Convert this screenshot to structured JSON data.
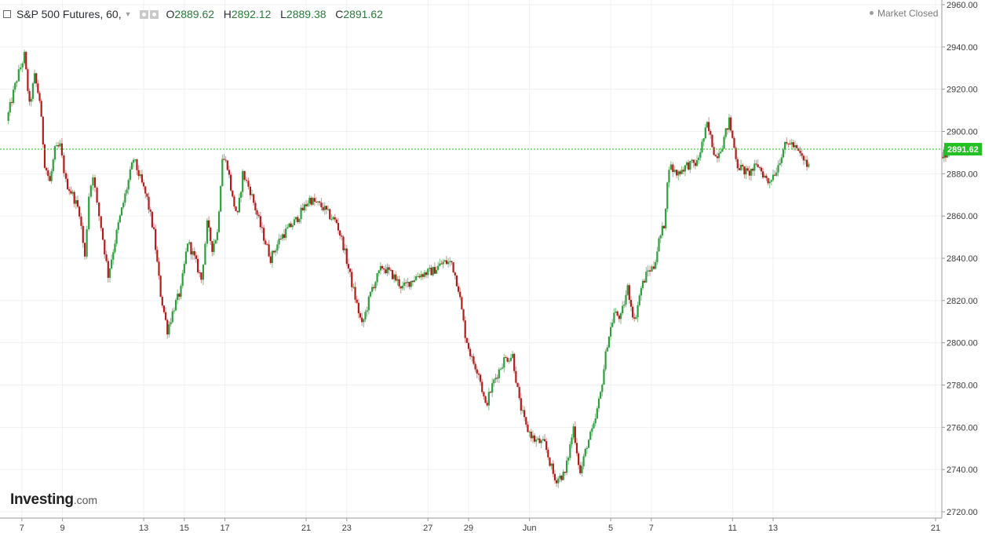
{
  "header": {
    "title": "S&P 500 Futures, 60,",
    "open_label": "O",
    "open": "2889.62",
    "high_label": "H",
    "high": "2892.12",
    "low_label": "L",
    "low": "2889.38",
    "close_label": "C",
    "close": "2891.62"
  },
  "status": {
    "text": "Market Closed"
  },
  "logo": {
    "main": "Investing",
    "suffix": ".com"
  },
  "colors": {
    "up": "#2e9e3e",
    "down": "#b31b1b",
    "last_price": "#22c022",
    "grid": "#eef1f4",
    "axis_text": "#3c3c3c"
  },
  "chart_data": {
    "type": "candlestick",
    "title": "S&P 500 Futures, 60,",
    "y_ticks": [
      2720,
      2740,
      2760,
      2780,
      2800,
      2820,
      2840,
      2860,
      2880,
      2900,
      2920,
      2940,
      2960
    ],
    "y_tick_labels": [
      "2720.00",
      "2740.00",
      "2760.00",
      "2780.00",
      "2800.00",
      "2820.00",
      "2840.00",
      "2860.00",
      "2880.00",
      "2900.00",
      "2920.00",
      "2940.00",
      "2960.00"
    ],
    "ylim": [
      2718,
      2962
    ],
    "x_tick_labels": [
      "7",
      "9",
      "13",
      "15",
      "17",
      "21",
      "23",
      "27",
      "29",
      "Jun",
      "5",
      "7",
      "11",
      "13",
      "21"
    ],
    "x_tick_dates": [
      "2019-05-07",
      "2019-05-09",
      "2019-05-13",
      "2019-05-15",
      "2019-05-17",
      "2019-05-21",
      "2019-05-23",
      "2019-05-27",
      "2019-05-29",
      "2019-06-01",
      "2019-06-05",
      "2019-06-07",
      "2019-06-11",
      "2019-06-13",
      "2019-06-21"
    ],
    "last_price": 2891.62,
    "last_price_label": "2891.62",
    "close_path": [
      {
        "date": "2019-05-06",
        "close": 2905
      },
      {
        "date": "2019-05-06",
        "close": 2925
      },
      {
        "date": "2019-05-07",
        "close": 2936
      },
      {
        "date": "2019-05-07",
        "close": 2912
      },
      {
        "date": "2019-05-07",
        "close": 2926
      },
      {
        "date": "2019-05-07",
        "close": 2915
      },
      {
        "date": "2019-05-08",
        "close": 2885
      },
      {
        "date": "2019-05-08",
        "close": 2876
      },
      {
        "date": "2019-05-08",
        "close": 2891
      },
      {
        "date": "2019-05-08",
        "close": 2893
      },
      {
        "date": "2019-05-09",
        "close": 2876
      },
      {
        "date": "2019-05-09",
        "close": 2870
      },
      {
        "date": "2019-05-09",
        "close": 2862
      },
      {
        "date": "2019-05-10",
        "close": 2840
      },
      {
        "date": "2019-05-10",
        "close": 2870
      },
      {
        "date": "2019-05-10",
        "close": 2880
      },
      {
        "date": "2019-05-10",
        "close": 2865
      },
      {
        "date": "2019-05-10",
        "close": 2855
      },
      {
        "date": "2019-05-11",
        "close": 2832
      },
      {
        "date": "2019-05-11",
        "close": 2856
      },
      {
        "date": "2019-05-12",
        "close": 2887
      },
      {
        "date": "2019-05-13",
        "close": 2868
      },
      {
        "date": "2019-05-13",
        "close": 2852
      },
      {
        "date": "2019-05-13",
        "close": 2823
      },
      {
        "date": "2019-05-14",
        "close": 2806
      },
      {
        "date": "2019-05-14",
        "close": 2817
      },
      {
        "date": "2019-05-14",
        "close": 2825
      },
      {
        "date": "2019-05-15",
        "close": 2848
      },
      {
        "date": "2019-05-15",
        "close": 2840
      },
      {
        "date": "2019-05-15",
        "close": 2830
      },
      {
        "date": "2019-05-16",
        "close": 2856
      },
      {
        "date": "2019-05-16",
        "close": 2845
      },
      {
        "date": "2019-05-16",
        "close": 2852
      },
      {
        "date": "2019-05-16",
        "close": 2888
      },
      {
        "date": "2019-05-17",
        "close": 2884
      },
      {
        "date": "2019-05-17",
        "close": 2868
      },
      {
        "date": "2019-05-17",
        "close": 2860
      },
      {
        "date": "2019-05-17",
        "close": 2880
      },
      {
        "date": "2019-05-18",
        "close": 2872
      },
      {
        "date": "2019-05-18",
        "close": 2855
      },
      {
        "date": "2019-05-19",
        "close": 2840
      },
      {
        "date": "2019-05-19",
        "close": 2850
      },
      {
        "date": "2019-05-20",
        "close": 2858
      },
      {
        "date": "2019-05-21",
        "close": 2868
      },
      {
        "date": "2019-05-21",
        "close": 2866
      },
      {
        "date": "2019-05-21",
        "close": 2864
      },
      {
        "date": "2019-05-22",
        "close": 2860
      },
      {
        "date": "2019-05-22",
        "close": 2857
      },
      {
        "date": "2019-05-22",
        "close": 2846
      },
      {
        "date": "2019-05-23",
        "close": 2828
      },
      {
        "date": "2019-05-23",
        "close": 2808
      },
      {
        "date": "2019-05-24",
        "close": 2826
      },
      {
        "date": "2019-05-24",
        "close": 2836
      },
      {
        "date": "2019-05-25",
        "close": 2832
      },
      {
        "date": "2019-05-25",
        "close": 2826
      },
      {
        "date": "2019-05-26",
        "close": 2832
      },
      {
        "date": "2019-05-27",
        "close": 2834
      },
      {
        "date": "2019-05-27",
        "close": 2838
      },
      {
        "date": "2019-05-28",
        "close": 2838
      },
      {
        "date": "2019-05-28",
        "close": 2826
      },
      {
        "date": "2019-05-28",
        "close": 2804
      },
      {
        "date": "2019-05-29",
        "close": 2792
      },
      {
        "date": "2019-05-29",
        "close": 2786
      },
      {
        "date": "2019-05-29",
        "close": 2770
      },
      {
        "date": "2019-05-30",
        "close": 2782
      },
      {
        "date": "2019-05-30",
        "close": 2792
      },
      {
        "date": "2019-05-31",
        "close": 2794
      },
      {
        "date": "2019-05-31",
        "close": 2772
      },
      {
        "date": "2019-05-31",
        "close": 2760
      },
      {
        "date": "2019-06-01",
        "close": 2754
      },
      {
        "date": "2019-06-01",
        "close": 2752
      },
      {
        "date": "2019-06-02",
        "close": 2735
      },
      {
        "date": "2019-06-02",
        "close": 2738
      },
      {
        "date": "2019-06-03",
        "close": 2760
      },
      {
        "date": "2019-06-03",
        "close": 2738
      },
      {
        "date": "2019-06-03",
        "close": 2752
      },
      {
        "date": "2019-06-04",
        "close": 2760
      },
      {
        "date": "2019-06-04",
        "close": 2776
      },
      {
        "date": "2019-06-04",
        "close": 2800
      },
      {
        "date": "2019-06-05",
        "close": 2814
      },
      {
        "date": "2019-06-05",
        "close": 2812
      },
      {
        "date": "2019-06-05",
        "close": 2826
      },
      {
        "date": "2019-06-06",
        "close": 2810
      },
      {
        "date": "2019-06-06",
        "close": 2826
      },
      {
        "date": "2019-06-06",
        "close": 2834
      },
      {
        "date": "2019-06-07",
        "close": 2836
      },
      {
        "date": "2019-06-07",
        "close": 2848
      },
      {
        "date": "2019-06-07",
        "close": 2856
      },
      {
        "date": "2019-06-07",
        "close": 2884
      },
      {
        "date": "2019-06-08",
        "close": 2880
      },
      {
        "date": "2019-06-08",
        "close": 2884
      },
      {
        "date": "2019-06-09",
        "close": 2885
      },
      {
        "date": "2019-06-09",
        "close": 2903
      },
      {
        "date": "2019-06-10",
        "close": 2888
      },
      {
        "date": "2019-06-10",
        "close": 2894
      },
      {
        "date": "2019-06-10",
        "close": 2905
      },
      {
        "date": "2019-06-11",
        "close": 2884
      },
      {
        "date": "2019-06-11",
        "close": 2880
      },
      {
        "date": "2019-06-12",
        "close": 2884
      },
      {
        "date": "2019-06-12",
        "close": 2876
      },
      {
        "date": "2019-06-13",
        "close": 2882
      },
      {
        "date": "2019-06-13",
        "close": 2892
      },
      {
        "date": "2019-06-13",
        "close": 2895
      },
      {
        "date": "2019-06-14",
        "close": 2890
      },
      {
        "date": "2019-06-14",
        "close": 2883
      },
      {
        "date": "2019-06-21",
        "close": 2888
      },
      {
        "date": "2019-06-21",
        "close": 2891.62
      }
    ]
  }
}
